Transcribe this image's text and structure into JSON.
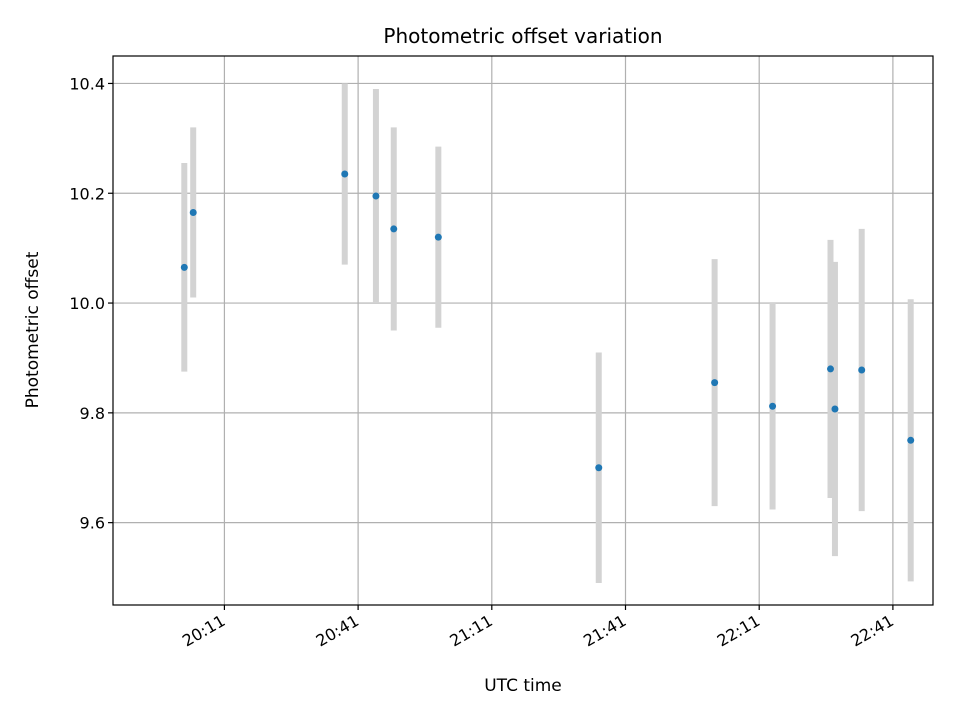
{
  "chart_data": {
    "type": "scatter",
    "title": "Photometric offset variation",
    "xlabel": "UTC time",
    "ylabel": "Photometric offset",
    "xlim": [
      "19:46",
      "22:50"
    ],
    "ylim": [
      9.45,
      10.45
    ],
    "x_ticks": [
      "20:11",
      "20:41",
      "21:11",
      "21:41",
      "22:11",
      "22:41"
    ],
    "y_ticks": [
      9.6,
      9.8,
      10.0,
      10.2,
      10.4
    ],
    "grid": true,
    "colors": {
      "points": "#1f77b4",
      "errorbars": "#d3d3d3",
      "grid": "#b0b0b0"
    },
    "points": [
      {
        "time": "20:02",
        "y": 10.065,
        "err": 0.19
      },
      {
        "time": "20:04",
        "y": 10.165,
        "err": 0.155
      },
      {
        "time": "20:38",
        "y": 10.235,
        "err": 0.165
      },
      {
        "time": "20:45",
        "y": 10.195,
        "err": 0.195
      },
      {
        "time": "20:49",
        "y": 10.135,
        "err": 0.185
      },
      {
        "time": "20:59",
        "y": 10.12,
        "err": 0.165
      },
      {
        "time": "21:35",
        "y": 9.7,
        "err": 0.21
      },
      {
        "time": "22:01",
        "y": 9.855,
        "err": 0.225
      },
      {
        "time": "22:14",
        "y": 9.812,
        "err": 0.188
      },
      {
        "time": "22:27",
        "y": 9.88,
        "err": 0.235
      },
      {
        "time": "22:28",
        "y": 9.807,
        "err": 0.268
      },
      {
        "time": "22:34",
        "y": 9.878,
        "err": 0.257
      },
      {
        "time": "22:45",
        "y": 9.75,
        "err": 0.257
      }
    ]
  }
}
